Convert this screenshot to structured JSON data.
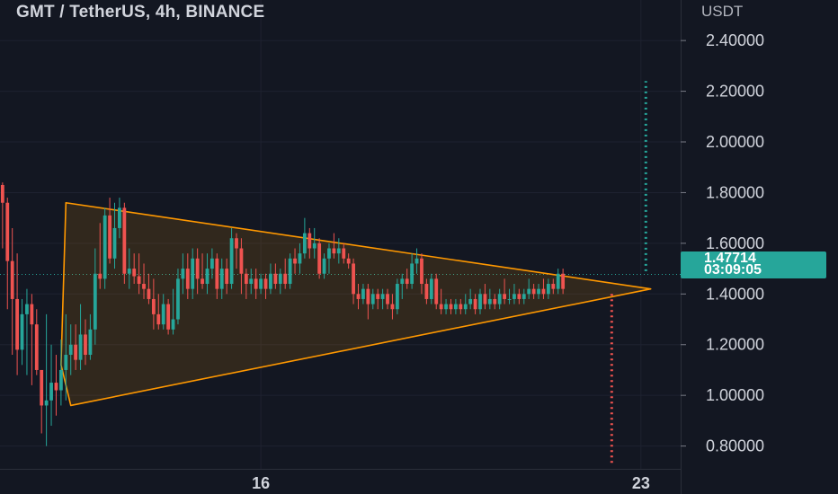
{
  "header": {
    "title": "GMT / TetherUS, 4h, BINANCE",
    "unit": "USDT"
  },
  "price_badge": {
    "price": "1.47714",
    "countdown": "03:09:05"
  },
  "colors": {
    "background": "#131722",
    "up": "#26a69a",
    "down": "#ef5350",
    "pattern": "#ff9800",
    "grid": "#1e2230"
  },
  "chart_data": {
    "type": "candlestick",
    "title": "GMT / TetherUS, 4h, BINANCE",
    "y_unit": "USDT",
    "ylim": [
      0.71,
      2.56
    ],
    "y_ticks": [
      "2.40000",
      "2.20000",
      "2.00000",
      "1.80000",
      "1.60000",
      "1.40000",
      "1.20000",
      "1.00000",
      "0.80000"
    ],
    "x_ticks": [
      {
        "label": "16",
        "index": 55
      },
      {
        "label": "23",
        "index": 133
      }
    ],
    "current_price": 1.47714,
    "candles": [
      [
        1.88,
        1.88,
        1.73,
        1.78
      ],
      [
        1.78,
        1.88,
        1.75,
        1.83
      ],
      [
        1.83,
        1.84,
        1.58,
        1.76
      ],
      [
        1.76,
        1.78,
        1.34,
        1.53
      ],
      [
        1.53,
        1.66,
        1.16,
        1.38
      ],
      [
        1.38,
        1.56,
        1.08,
        1.18
      ],
      [
        1.18,
        1.38,
        1.12,
        1.32
      ],
      [
        1.32,
        1.42,
        1.08,
        1.36
      ],
      [
        1.36,
        1.4,
        1.04,
        1.28
      ],
      [
        1.28,
        1.34,
        1.08,
        1.1
      ],
      [
        1.1,
        1.1,
        0.85,
        0.96
      ],
      [
        0.96,
        1.32,
        0.8,
        0.98
      ],
      [
        0.98,
        1.2,
        0.88,
        1.05
      ],
      [
        1.05,
        1.16,
        0.92,
        1.02
      ],
      [
        1.02,
        1.22,
        0.96,
        1.1
      ],
      [
        1.1,
        1.32,
        0.98,
        1.16
      ],
      [
        1.16,
        1.28,
        1.08,
        1.2
      ],
      [
        1.2,
        1.28,
        1.1,
        1.14
      ],
      [
        1.14,
        1.36,
        1.1,
        1.24
      ],
      [
        1.24,
        1.3,
        1.12,
        1.16
      ],
      [
        1.16,
        1.32,
        1.14,
        1.26
      ],
      [
        1.26,
        1.58,
        1.2,
        1.48
      ],
      [
        1.48,
        1.68,
        1.42,
        1.46
      ],
      [
        1.46,
        1.74,
        1.42,
        1.71
      ],
      [
        1.71,
        1.78,
        1.52,
        1.54
      ],
      [
        1.54,
        1.76,
        1.5,
        1.66
      ],
      [
        1.66,
        1.78,
        1.62,
        1.74
      ],
      [
        1.74,
        1.76,
        1.44,
        1.48
      ],
      [
        1.48,
        1.58,
        1.42,
        1.5
      ],
      [
        1.5,
        1.56,
        1.44,
        1.47
      ],
      [
        1.47,
        1.56,
        1.4,
        1.44
      ],
      [
        1.44,
        1.52,
        1.38,
        1.42
      ],
      [
        1.42,
        1.48,
        1.36,
        1.38
      ],
      [
        1.38,
        1.46,
        1.26,
        1.32
      ],
      [
        1.32,
        1.4,
        1.26,
        1.28
      ],
      [
        1.28,
        1.4,
        1.26,
        1.36
      ],
      [
        1.36,
        1.38,
        1.24,
        1.26
      ],
      [
        1.26,
        1.42,
        1.24,
        1.3
      ],
      [
        1.3,
        1.5,
        1.28,
        1.46
      ],
      [
        1.46,
        1.56,
        1.4,
        1.5
      ],
      [
        1.5,
        1.56,
        1.38,
        1.42
      ],
      [
        1.42,
        1.58,
        1.38,
        1.54
      ],
      [
        1.54,
        1.58,
        1.4,
        1.46
      ],
      [
        1.46,
        1.56,
        1.42,
        1.44
      ],
      [
        1.44,
        1.56,
        1.4,
        1.5
      ],
      [
        1.5,
        1.58,
        1.46,
        1.54
      ],
      [
        1.54,
        1.56,
        1.38,
        1.42
      ],
      [
        1.42,
        1.54,
        1.38,
        1.5
      ],
      [
        1.5,
        1.54,
        1.4,
        1.44
      ],
      [
        1.44,
        1.66,
        1.42,
        1.62
      ],
      [
        1.62,
        1.64,
        1.5,
        1.58
      ],
      [
        1.58,
        1.62,
        1.4,
        1.48
      ],
      [
        1.48,
        1.5,
        1.38,
        1.44
      ],
      [
        1.44,
        1.5,
        1.4,
        1.46
      ],
      [
        1.46,
        1.5,
        1.38,
        1.42
      ],
      [
        1.42,
        1.48,
        1.4,
        1.46
      ],
      [
        1.46,
        1.48,
        1.38,
        1.42
      ],
      [
        1.42,
        1.52,
        1.4,
        1.48
      ],
      [
        1.48,
        1.52,
        1.42,
        1.44
      ],
      [
        1.44,
        1.5,
        1.4,
        1.48
      ],
      [
        1.48,
        1.54,
        1.42,
        1.44
      ],
      [
        1.44,
        1.56,
        1.42,
        1.54
      ],
      [
        1.54,
        1.58,
        1.48,
        1.52
      ],
      [
        1.52,
        1.6,
        1.48,
        1.56
      ],
      [
        1.56,
        1.7,
        1.54,
        1.64
      ],
      [
        1.64,
        1.66,
        1.54,
        1.58
      ],
      [
        1.58,
        1.66,
        1.54,
        1.6
      ],
      [
        1.6,
        1.62,
        1.46,
        1.48
      ],
      [
        1.48,
        1.56,
        1.46,
        1.54
      ],
      [
        1.54,
        1.6,
        1.48,
        1.58
      ],
      [
        1.58,
        1.64,
        1.54,
        1.56
      ],
      [
        1.56,
        1.62,
        1.52,
        1.58
      ],
      [
        1.58,
        1.6,
        1.52,
        1.54
      ],
      [
        1.54,
        1.56,
        1.5,
        1.52
      ],
      [
        1.52,
        1.54,
        1.36,
        1.4
      ],
      [
        1.4,
        1.44,
        1.34,
        1.38
      ],
      [
        1.38,
        1.44,
        1.36,
        1.42
      ],
      [
        1.42,
        1.44,
        1.3,
        1.36
      ],
      [
        1.36,
        1.42,
        1.34,
        1.4
      ],
      [
        1.4,
        1.42,
        1.34,
        1.38
      ],
      [
        1.38,
        1.42,
        1.34,
        1.4
      ],
      [
        1.4,
        1.42,
        1.34,
        1.36
      ],
      [
        1.36,
        1.4,
        1.3,
        1.34
      ],
      [
        1.34,
        1.46,
        1.32,
        1.44
      ],
      [
        1.44,
        1.48,
        1.38,
        1.46
      ],
      [
        1.46,
        1.5,
        1.42,
        1.44
      ],
      [
        1.44,
        1.56,
        1.42,
        1.52
      ],
      [
        1.52,
        1.58,
        1.48,
        1.54
      ],
      [
        1.54,
        1.56,
        1.4,
        1.44
      ],
      [
        1.44,
        1.46,
        1.36,
        1.38
      ],
      [
        1.38,
        1.48,
        1.36,
        1.46
      ],
      [
        1.46,
        1.48,
        1.34,
        1.36
      ],
      [
        1.36,
        1.42,
        1.32,
        1.34
      ],
      [
        1.34,
        1.38,
        1.32,
        1.36
      ],
      [
        1.36,
        1.38,
        1.32,
        1.34
      ],
      [
        1.34,
        1.38,
        1.32,
        1.36
      ],
      [
        1.36,
        1.38,
        1.32,
        1.34
      ],
      [
        1.34,
        1.4,
        1.32,
        1.36
      ],
      [
        1.36,
        1.42,
        1.34,
        1.38
      ],
      [
        1.38,
        1.4,
        1.32,
        1.34
      ],
      [
        1.34,
        1.42,
        1.32,
        1.4
      ],
      [
        1.4,
        1.44,
        1.34,
        1.36
      ],
      [
        1.36,
        1.42,
        1.34,
        1.38
      ],
      [
        1.38,
        1.4,
        1.34,
        1.36
      ],
      [
        1.36,
        1.42,
        1.34,
        1.4
      ],
      [
        1.4,
        1.46,
        1.36,
        1.38
      ],
      [
        1.38,
        1.42,
        1.36,
        1.38
      ],
      [
        1.38,
        1.44,
        1.36,
        1.4
      ],
      [
        1.4,
        1.42,
        1.36,
        1.38
      ],
      [
        1.38,
        1.42,
        1.36,
        1.4
      ],
      [
        1.4,
        1.46,
        1.38,
        1.42
      ],
      [
        1.42,
        1.44,
        1.38,
        1.4
      ],
      [
        1.4,
        1.44,
        1.38,
        1.42
      ],
      [
        1.42,
        1.46,
        1.38,
        1.4
      ],
      [
        1.4,
        1.46,
        1.38,
        1.44
      ],
      [
        1.44,
        1.46,
        1.4,
        1.42
      ],
      [
        1.42,
        1.5,
        1.4,
        1.48
      ],
      [
        1.48,
        1.5,
        1.4,
        1.42
      ]
    ],
    "triangle": [
      {
        "index": 14,
        "price": 1.12
      },
      {
        "index": 15,
        "price": 1.76
      },
      {
        "index": 135,
        "price": 1.42
      },
      {
        "index": 16,
        "price": 0.96
      }
    ],
    "target_up": {
      "index": 134,
      "from": 1.49,
      "to": 2.24
    },
    "target_down": {
      "index": 127,
      "from": 1.4,
      "to": 0.73
    }
  }
}
